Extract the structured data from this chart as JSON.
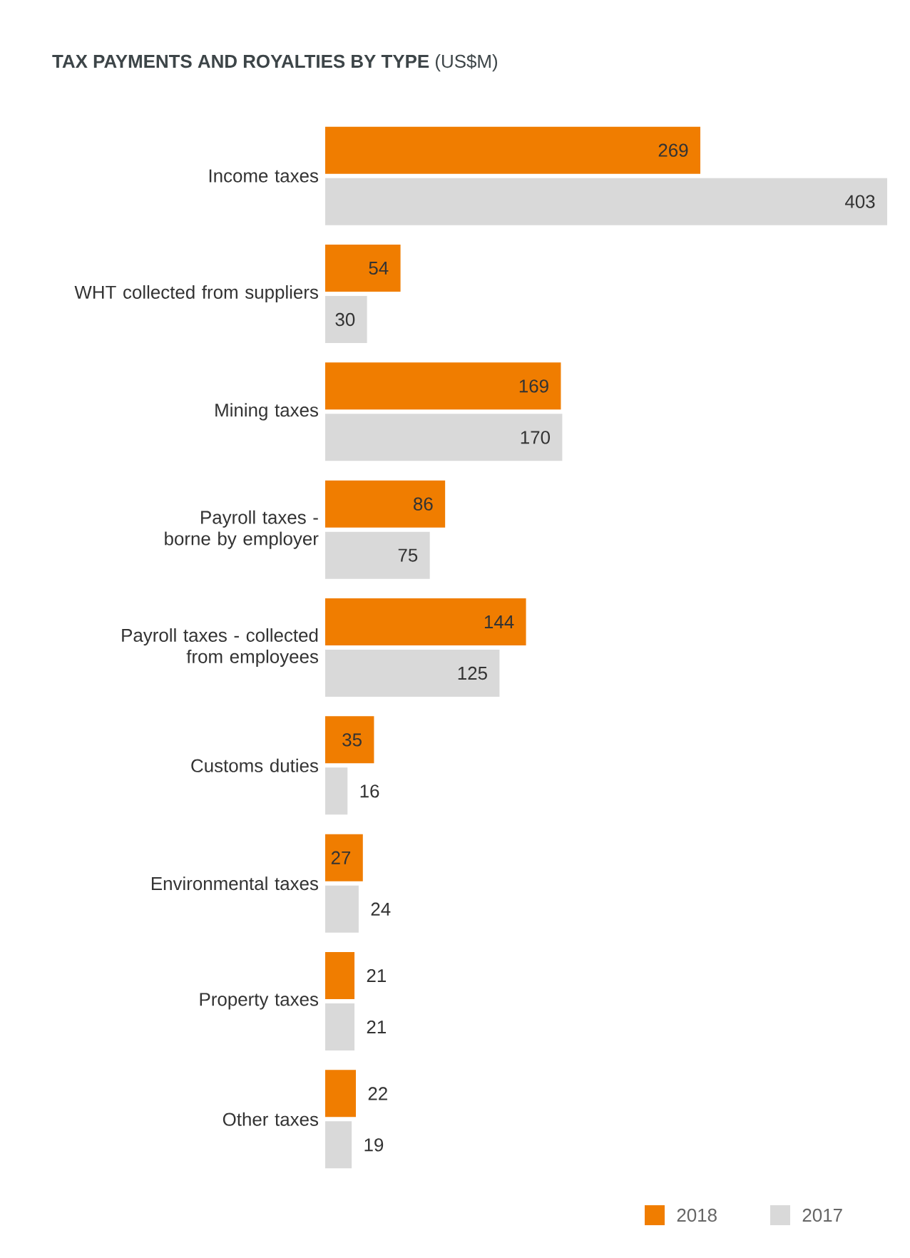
{
  "chart_data": {
    "type": "bar",
    "orientation": "horizontal",
    "title": "**TAX PAYMENTS AND ROYALTIES BY TYPE** (US$M)",
    "categories": [
      "Income taxes",
      "WHT collected from suppliers",
      "Mining taxes",
      "Payroll taxes - borne by employer",
      "Payroll taxes - collected from employees",
      "Customs duties",
      "Environmental taxes",
      "Property taxes",
      "Other taxes"
    ],
    "series": [
      {
        "name": "2018",
        "color": "#f07d00",
        "values": [
          269,
          54,
          169,
          86,
          144,
          35,
          27,
          21,
          22
        ]
      },
      {
        "name": "2017",
        "color": "#d9d9d9",
        "values": [
          403,
          30,
          170,
          75,
          125,
          16,
          24,
          21,
          19
        ]
      }
    ],
    "data_labels": true,
    "legend": "bottom right"
  }
}
